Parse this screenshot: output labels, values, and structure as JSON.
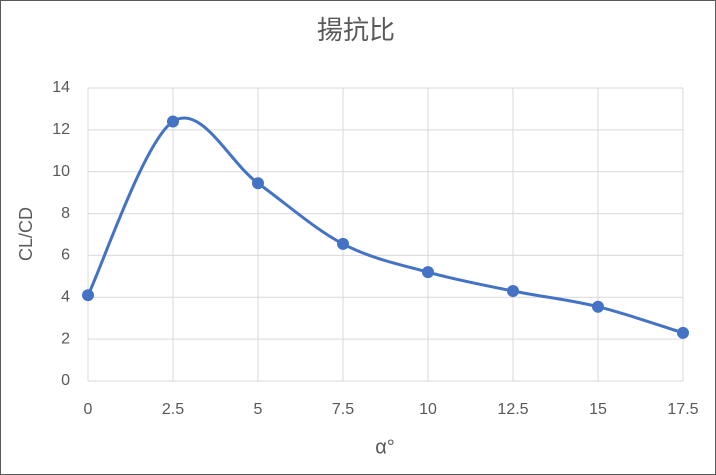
{
  "chart_data": {
    "type": "scatter",
    "title": "揚抗比",
    "x_label": "α°",
    "y_label": "CL/CD",
    "x": [
      0,
      2.5,
      5,
      7.5,
      10,
      12.5,
      15,
      17.5
    ],
    "series": [
      {
        "name": "CL/CD",
        "color": "#4472c4",
        "values": [
          4.1,
          12.4,
          9.45,
          6.55,
          5.2,
          4.3,
          3.55,
          2.3
        ]
      }
    ],
    "smooth": true,
    "grid": true,
    "xlim": [
      0,
      17.5
    ],
    "xticks": [
      0,
      2.5,
      5,
      7.5,
      10,
      12.5,
      15,
      17.5
    ],
    "ylim": [
      0,
      14
    ],
    "yticks": [
      0,
      2,
      4,
      6,
      8,
      10,
      12,
      14
    ]
  }
}
